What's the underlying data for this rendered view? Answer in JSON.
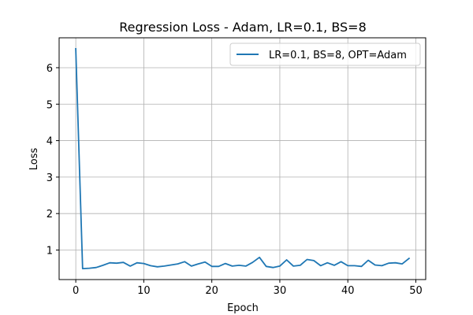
{
  "chart_data": {
    "type": "line",
    "title": "Regression Loss - Adam, LR=0.1, BS=8",
    "xlabel": "Epoch",
    "ylabel": "Loss",
    "xlim": [
      -2.45,
      51.45
    ],
    "ylim": [
      0.19,
      6.82
    ],
    "xticks": [
      0,
      10,
      20,
      30,
      40,
      50
    ],
    "yticks": [
      1,
      2,
      3,
      4,
      5,
      6
    ],
    "grid": true,
    "legend_position": "top-right",
    "series": [
      {
        "name": "LR=0.1, BS=8, OPT=Adam",
        "color": "#1f77b4",
        "x": [
          0,
          1,
          2,
          3,
          4,
          5,
          6,
          7,
          8,
          9,
          10,
          11,
          12,
          13,
          14,
          15,
          16,
          17,
          18,
          19,
          20,
          21,
          22,
          23,
          24,
          25,
          26,
          27,
          28,
          29,
          30,
          31,
          32,
          33,
          34,
          35,
          36,
          37,
          38,
          39,
          40,
          41,
          42,
          43,
          44,
          45,
          46,
          47,
          48,
          49
        ],
        "y": [
          6.52,
          0.49,
          0.5,
          0.52,
          0.58,
          0.65,
          0.64,
          0.66,
          0.56,
          0.65,
          0.63,
          0.57,
          0.54,
          0.56,
          0.59,
          0.62,
          0.68,
          0.56,
          0.62,
          0.67,
          0.55,
          0.55,
          0.63,
          0.56,
          0.58,
          0.56,
          0.66,
          0.8,
          0.55,
          0.52,
          0.56,
          0.73,
          0.56,
          0.58,
          0.74,
          0.71,
          0.57,
          0.65,
          0.58,
          0.68,
          0.57,
          0.57,
          0.55,
          0.72,
          0.59,
          0.57,
          0.64,
          0.65,
          0.62,
          0.77
        ]
      }
    ]
  }
}
